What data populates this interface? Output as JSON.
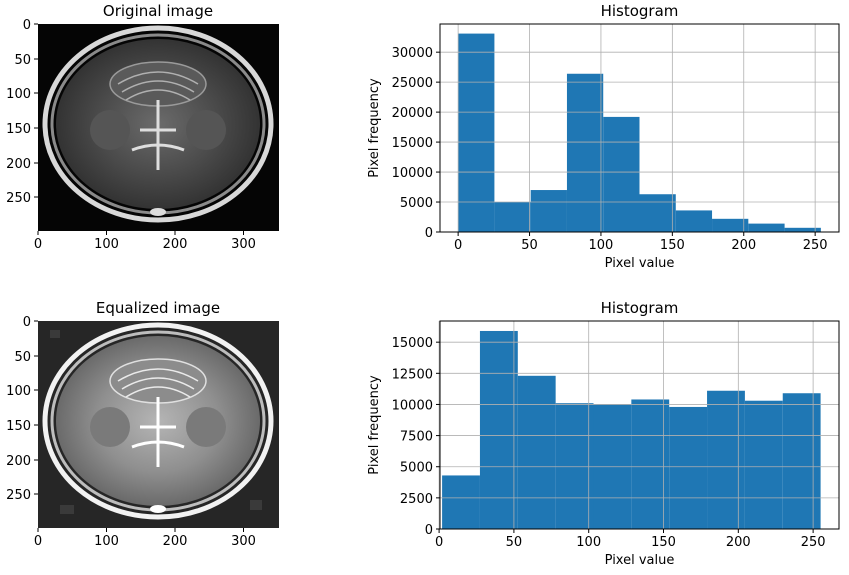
{
  "chart_data": [
    {
      "type": "image",
      "title": "Original image",
      "xticks": [
        0,
        100,
        200,
        300
      ],
      "yticks": [
        0,
        50,
        100,
        150,
        200,
        250
      ],
      "xlim": [
        -0.5,
        351.5
      ],
      "ylim": [
        297.5,
        -0.5
      ]
    },
    {
      "type": "bar",
      "title": "Histogram",
      "xlabel": "Pixel value",
      "ylabel": "Pixel frequency",
      "grid": true,
      "xlim": [
        -12.7,
        266.7
      ],
      "ylim": [
        0,
        34700
      ],
      "xticks": [
        0,
        50,
        100,
        150,
        200,
        250
      ],
      "yticks": [
        0,
        5000,
        10000,
        15000,
        20000,
        25000,
        30000
      ],
      "bin_edges": [
        0,
        25.4,
        50.8,
        76.2,
        101.6,
        127,
        152.4,
        177.8,
        203.2,
        228.6,
        254
      ],
      "values": [
        33100,
        5000,
        7000,
        26400,
        19200,
        6300,
        3600,
        2200,
        1400,
        700
      ],
      "color": "#1f77b4"
    },
    {
      "type": "image",
      "title": "Equalized image",
      "xticks": [
        0,
        100,
        200,
        300
      ],
      "yticks": [
        0,
        50,
        100,
        150,
        200,
        250
      ],
      "xlim": [
        -0.5,
        351.5
      ],
      "ylim": [
        297.5,
        -0.5
      ]
    },
    {
      "type": "bar",
      "title": "Histogram",
      "xlabel": "Pixel value",
      "ylabel": "Pixel frequency",
      "grid": true,
      "xlim": [
        0.6,
        267.3
      ],
      "ylim": [
        0,
        16700
      ],
      "xticks": [
        0,
        50,
        100,
        150,
        200,
        250
      ],
      "yticks": [
        0,
        2500,
        5000,
        7500,
        10000,
        12500,
        15000
      ],
      "bin_edges": [
        2,
        27.3,
        52.6,
        77.9,
        103.2,
        128.5,
        153.8,
        179.1,
        204.4,
        229.7,
        255
      ],
      "values": [
        4300,
        15900,
        12300,
        10100,
        10000,
        10400,
        9800,
        11100,
        10300,
        10900
      ],
      "color": "#1f77b4"
    }
  ]
}
